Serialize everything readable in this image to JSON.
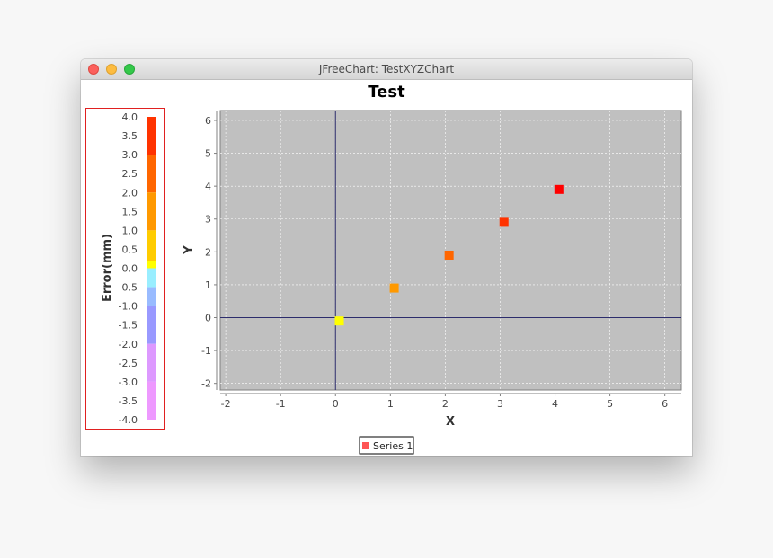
{
  "window": {
    "title": "JFreeChart: TestXYZChart"
  },
  "chart_data": {
    "type": "scatter",
    "title": "Test",
    "xlabel": "X",
    "ylabel": "Y",
    "xlim": [
      -2.1,
      6.3
    ],
    "ylim": [
      -2.2,
      6.3
    ],
    "x_ticks": [
      -2,
      -1,
      0,
      1,
      2,
      3,
      4,
      5,
      6
    ],
    "y_ticks": [
      -2,
      -1,
      0,
      1,
      2,
      3,
      4,
      5,
      6
    ],
    "grid": true,
    "plot_background": "#c0c0c0",
    "crosshair_color": "#2c2c6c",
    "series": [
      {
        "name": "Series 1",
        "legend_color": "#ff5555",
        "points": [
          {
            "x": 0.07,
            "y": -0.1,
            "z": 0.0,
            "color": "#ffff00"
          },
          {
            "x": 1.07,
            "y": 0.9,
            "z": 1.0,
            "color": "#ff9900"
          },
          {
            "x": 2.07,
            "y": 1.9,
            "z": 2.0,
            "color": "#ff6600"
          },
          {
            "x": 3.07,
            "y": 2.9,
            "z": 3.0,
            "color": "#ff3300"
          },
          {
            "x": 4.07,
            "y": 3.9,
            "z": 4.0,
            "color": "#ff0000"
          }
        ]
      }
    ],
    "legend": {
      "placement": "bottom",
      "entries": [
        "Series 1"
      ]
    },
    "colorbar": {
      "label": "Error(mm)",
      "placement": "left",
      "border_color": "#e02020",
      "range": [
        -4.0,
        4.0
      ],
      "ticks": [
        "4.0",
        "3.5",
        "3.0",
        "2.5",
        "2.0",
        "1.5",
        "1.0",
        "0.5",
        "0.0",
        "-0.5",
        "-1.0",
        "-1.5",
        "-2.0",
        "-2.5",
        "-3.0",
        "-3.5",
        "-4.0"
      ],
      "bands": [
        {
          "from": 3.0,
          "to": 4.0,
          "color": "#ff3300"
        },
        {
          "from": 2.0,
          "to": 3.0,
          "color": "#ff6600"
        },
        {
          "from": 1.0,
          "to": 2.0,
          "color": "#ff9900"
        },
        {
          "from": 0.2,
          "to": 1.0,
          "color": "#ffcc00"
        },
        {
          "from": 0.0,
          "to": 0.2,
          "color": "#ffff00"
        },
        {
          "from": -0.5,
          "to": 0.0,
          "color": "#99eeff"
        },
        {
          "from": -1.0,
          "to": -0.5,
          "color": "#99bbff"
        },
        {
          "from": -2.0,
          "to": -1.0,
          "color": "#9999ff"
        },
        {
          "from": -3.0,
          "to": -2.0,
          "color": "#dd99ff"
        },
        {
          "from": -4.0,
          "to": -3.0,
          "color": "#ee99ff"
        }
      ]
    }
  }
}
